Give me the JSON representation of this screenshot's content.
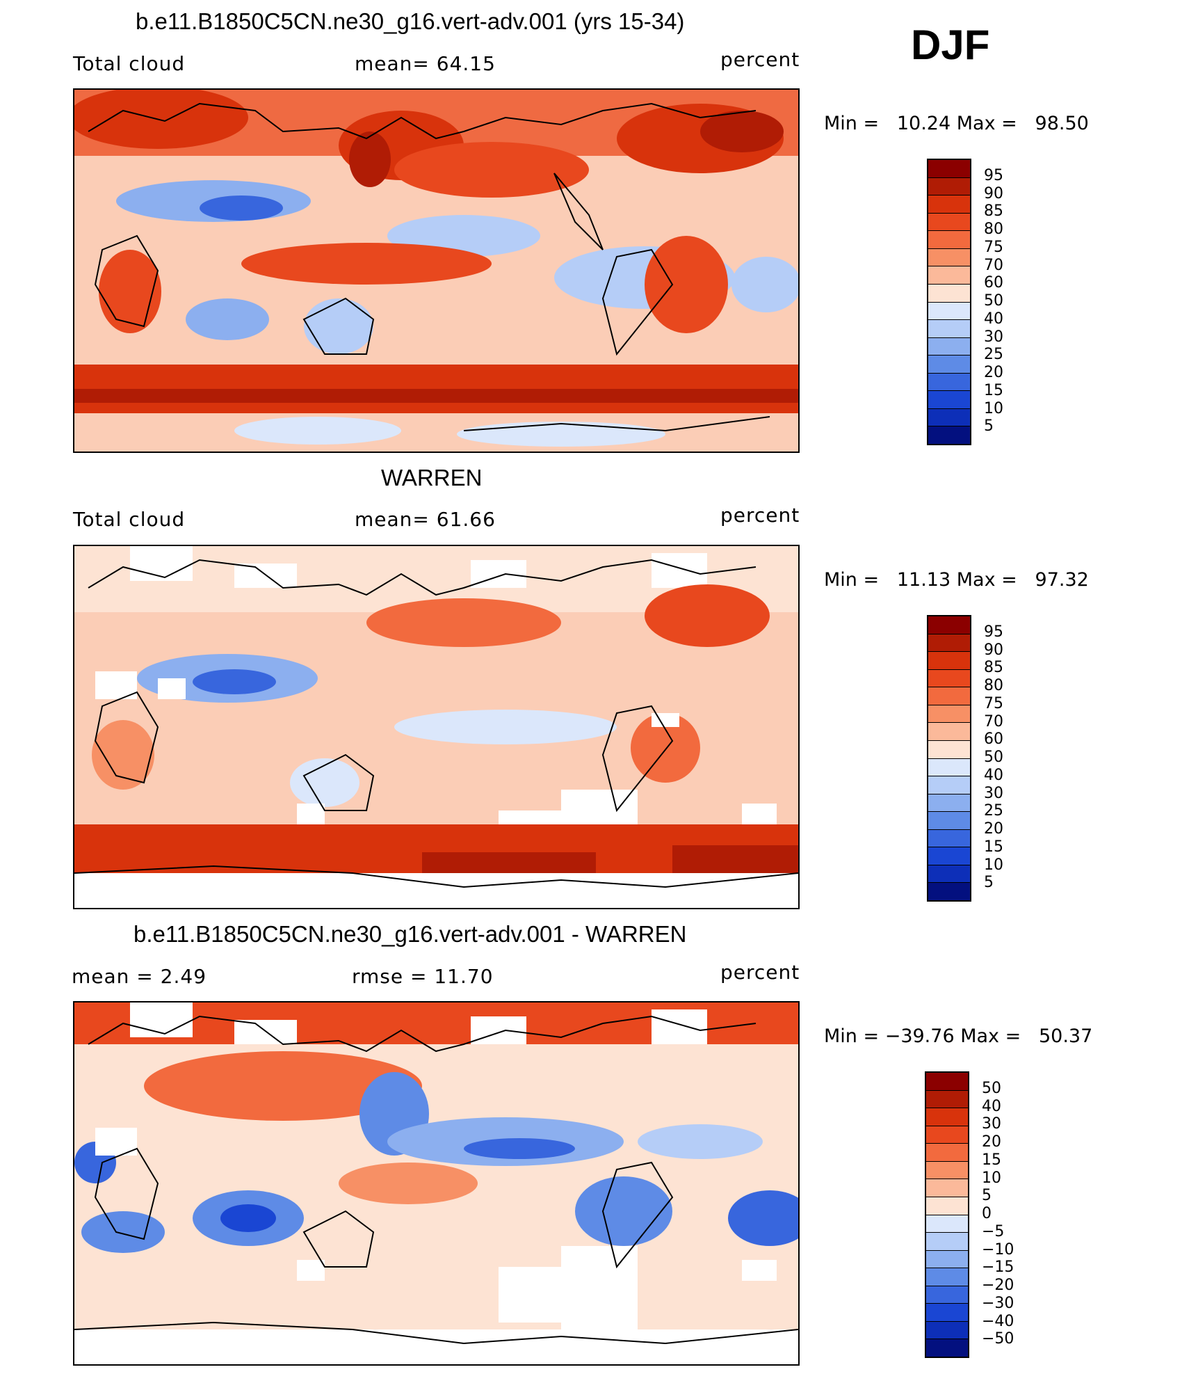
{
  "season": "DJF",
  "panels": [
    {
      "title": "b.e11.B1850C5CN.ne30_g16.vert-adv.001 (yrs 15-34)",
      "left_label": "Total cloud",
      "mid_label": "mean=   64.15",
      "units": "percent",
      "stats": "Min =   10.24 Max =   98.50",
      "colorbar": {
        "levels": [
          "95",
          "90",
          "85",
          "80",
          "75",
          "70",
          "60",
          "50",
          "40",
          "30",
          "25",
          "20",
          "15",
          "10",
          "5"
        ],
        "colors": [
          "#8b0000",
          "#b01c05",
          "#d8330c",
          "#e8481e",
          "#f26a3e",
          "#f79065",
          "#fbb99a",
          "#fde3d3",
          "#dbe7fb",
          "#b5cdf7",
          "#8cafef",
          "#5e8be6",
          "#3866dd",
          "#1a46d3",
          "#0d2fb8",
          "#03107f"
        ]
      }
    },
    {
      "title": "WARREN",
      "left_label": "Total cloud",
      "mid_label": "mean=   61.66",
      "units": "percent",
      "stats": "Min =   11.13 Max =   97.32",
      "colorbar": {
        "levels": [
          "95",
          "90",
          "85",
          "80",
          "75",
          "70",
          "60",
          "50",
          "40",
          "30",
          "25",
          "20",
          "15",
          "10",
          "5"
        ],
        "colors": [
          "#8b0000",
          "#b01c05",
          "#d8330c",
          "#e8481e",
          "#f26a3e",
          "#f79065",
          "#fbb99a",
          "#fde3d3",
          "#dbe7fb",
          "#b5cdf7",
          "#8cafef",
          "#5e8be6",
          "#3866dd",
          "#1a46d3",
          "#0d2fb8",
          "#03107f"
        ]
      }
    },
    {
      "title": "b.e11.B1850C5CN.ne30_g16.vert-adv.001 - WARREN",
      "left_label": "mean =    2.49",
      "mid_label": "rmse =   11.70",
      "units": "percent",
      "stats": "Min = −39.76 Max =   50.37",
      "colorbar": {
        "levels": [
          "50",
          "40",
          "30",
          "20",
          "15",
          "10",
          "5",
          "0",
          "−5",
          "−10",
          "−15",
          "−20",
          "−30",
          "−40",
          "−50"
        ],
        "colors": [
          "#8b0000",
          "#b01c05",
          "#d8330c",
          "#e8481e",
          "#f26a3e",
          "#f79065",
          "#fbb99a",
          "#fde3d3",
          "#dbe7fb",
          "#b5cdf7",
          "#8cafef",
          "#5e8be6",
          "#3866dd",
          "#1a46d3",
          "#0d2fb8",
          "#03107f"
        ]
      }
    }
  ]
}
